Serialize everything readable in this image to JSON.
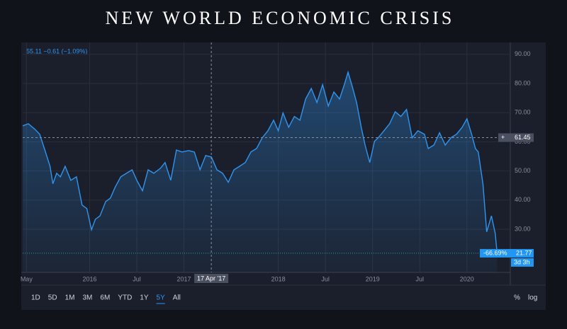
{
  "title": "NEW WORLD ECONOMIC CRISIS",
  "chart_data": {
    "type": "area",
    "header": "55.11 −0.61 (−1.09%)",
    "color": "#2f95f0",
    "grid": true,
    "x": [
      2015.29,
      2015.35,
      2015.42,
      2015.47,
      2015.52,
      2015.58,
      2015.61,
      2015.65,
      2015.69,
      2015.74,
      2015.8,
      2015.86,
      2015.92,
      2015.97,
      2016.02,
      2016.06,
      2016.11,
      2016.17,
      2016.22,
      2016.27,
      2016.33,
      2016.39,
      2016.45,
      2016.5,
      2016.56,
      2016.62,
      2016.68,
      2016.75,
      2016.8,
      2016.86,
      2016.92,
      2016.98,
      2017.05,
      2017.11,
      2017.17,
      2017.23,
      2017.29,
      2017.35,
      2017.41,
      2017.47,
      2017.53,
      2017.59,
      2017.65,
      2017.71,
      2017.77,
      2017.83,
      2017.89,
      2017.95,
      2018.0,
      2018.05,
      2018.11,
      2018.17,
      2018.23,
      2018.29,
      2018.35,
      2018.41,
      2018.47,
      2018.53,
      2018.59,
      2018.65,
      2018.7,
      2018.74,
      2018.79,
      2018.83,
      2018.88,
      2018.92,
      2018.97,
      2019.02,
      2019.06,
      2019.12,
      2019.18,
      2019.24,
      2019.3,
      2019.36,
      2019.42,
      2019.48,
      2019.55,
      2019.59,
      2019.65,
      2019.71,
      2019.77,
      2019.83,
      2019.89,
      2019.95,
      2020.0,
      2020.05,
      2020.09,
      2020.12,
      2020.17,
      2020.21,
      2020.26,
      2020.3,
      2020.32
    ],
    "values": [
      65.5,
      66.2,
      64.3,
      62.6,
      57.7,
      51.6,
      45.6,
      49.2,
      48,
      51.6,
      46.8,
      48,
      38.3,
      37.1,
      29.8,
      33.4,
      34.6,
      39.5,
      40.7,
      44.4,
      48,
      49.2,
      50.4,
      46.8,
      43.2,
      50.4,
      49.2,
      50.9,
      52.9,
      46.8,
      57.2,
      56.5,
      57,
      56.5,
      50.4,
      55.3,
      54.8,
      50.4,
      49.2,
      46.1,
      50.4,
      51.6,
      52.9,
      56.5,
      57.7,
      61.4,
      63.8,
      67.4,
      63.8,
      69.9,
      65,
      68.7,
      67.4,
      74.7,
      78.3,
      73.5,
      79.6,
      72.3,
      77.1,
      74.7,
      79.6,
      83.9,
      78.3,
      73.5,
      65,
      58.9,
      52.9,
      60.2,
      61.4,
      63.8,
      66.2,
      70.3,
      68.7,
      71.1,
      61.4,
      63.8,
      62.6,
      57.7,
      58.9,
      63.1,
      58.9,
      61.4,
      62.6,
      65,
      67.9,
      62.6,
      57.7,
      56.5,
      45.6,
      29.1,
      34.6,
      28.6,
      21.77
    ],
    "xlim": [
      2015.29,
      2020.46
    ],
    "ylim": [
      15.2,
      93.6
    ],
    "xticks": [
      {
        "value": 2015.33,
        "label": "May"
      },
      2016,
      {
        "value": 2016.5,
        "label": "Jul"
      },
      2017,
      2018,
      {
        "value": 2018.5,
        "label": "Jul"
      },
      2019,
      {
        "value": 2019.5,
        "label": "Jul"
      },
      2020
    ],
    "yticks": [
      {
        "value": 30,
        "label": "30.00"
      },
      {
        "value": 40,
        "label": "40.00"
      },
      {
        "value": 50,
        "label": "50.00"
      },
      {
        "value": 60,
        "label": "60.00"
      },
      {
        "value": 70,
        "label": "70.00"
      },
      {
        "value": 80,
        "label": "80.00"
      },
      {
        "value": 90,
        "label": "90.00"
      }
    ],
    "crosshair": {
      "x": 2017.29,
      "label": "17 Apr '17"
    },
    "reference_line": 61.45,
    "change_label": "-66.69%",
    "countdown": "3d 3h",
    "timeframes": [
      "1D",
      "5D",
      "1M",
      "3M",
      "6M",
      "YTD",
      "1Y",
      "5Y",
      "All"
    ],
    "active_timeframe_index": 7,
    "scale_options": [
      "%",
      "log"
    ]
  }
}
